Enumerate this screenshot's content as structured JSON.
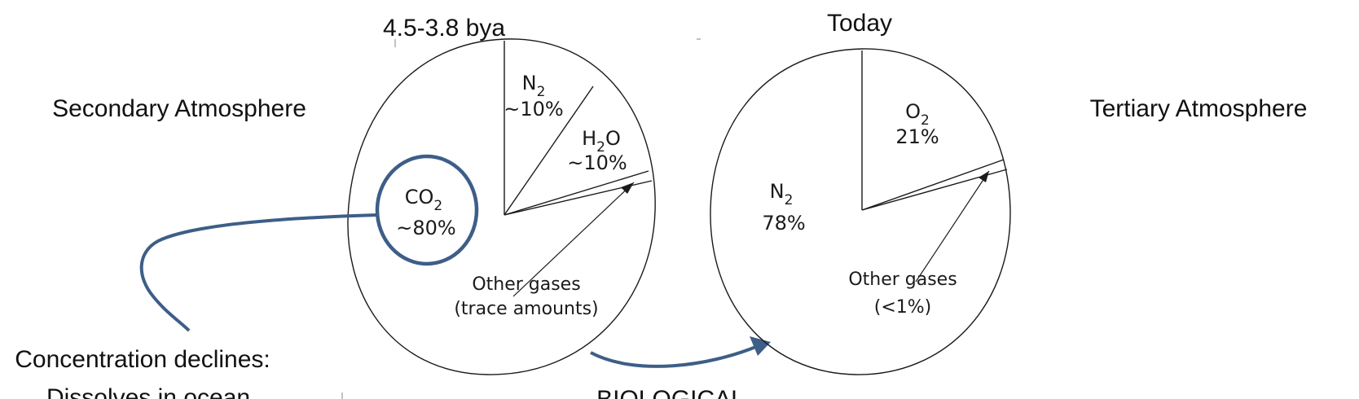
{
  "left": {
    "title": "4.5-3.8 bya",
    "side_label": "Secondary Atmosphere",
    "slices": {
      "n2": {
        "formula": "N",
        "sub": "2",
        "pct": "~10%"
      },
      "h2o": {
        "formula_a": "H",
        "sub": "2",
        "formula_b": "O",
        "pct": "~10%"
      },
      "co2": {
        "formula": "CO",
        "sub": "2",
        "pct": "~80%"
      },
      "other_l1": "Other gases",
      "other_l2": "(trace amounts)"
    },
    "note_l1": "Concentration declines:",
    "note_l2": "Dissolves in ocean"
  },
  "right": {
    "title": "Today",
    "side_label": "Tertiary Atmosphere",
    "slices": {
      "o2": {
        "formula": "O",
        "sub": "2",
        "pct": "21%"
      },
      "n2": {
        "formula": "N",
        "sub": "2",
        "pct": "78%"
      },
      "other_l1": "Other gases",
      "other_l2": "(<1%)"
    }
  },
  "bottom_label": "BIOLOGICAL",
  "colors": {
    "highlight": "#3d5e87",
    "line": "#1a1a1a"
  }
}
